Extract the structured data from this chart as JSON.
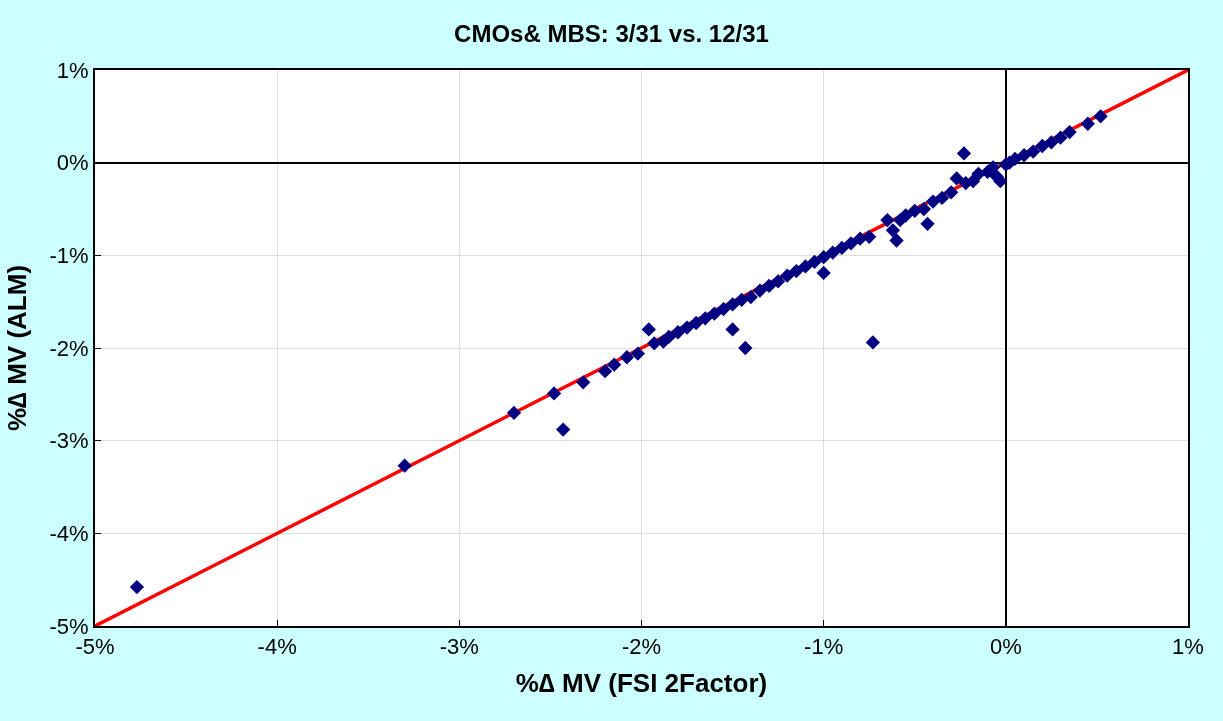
{
  "chart_data": {
    "type": "scatter",
    "title": "CMOs& MBS: 3/31 vs. 12/31",
    "xlabel": "%∆ MV (FSI 2Factor)",
    "ylabel": "%∆ MV (ALM)",
    "xlim": [
      -5,
      1
    ],
    "ylim": [
      -5,
      1
    ],
    "xticks": [
      {
        "value": -5,
        "label": "-5%"
      },
      {
        "value": -4,
        "label": "-4%"
      },
      {
        "value": -3,
        "label": "-3%"
      },
      {
        "value": -2,
        "label": "-2%"
      },
      {
        "value": -1,
        "label": "-1%"
      },
      {
        "value": 0,
        "label": "0%"
      },
      {
        "value": 1,
        "label": "1%"
      }
    ],
    "yticks": [
      {
        "value": -5,
        "label": "-5%"
      },
      {
        "value": -4,
        "label": "-4%"
      },
      {
        "value": -3,
        "label": "-3%"
      },
      {
        "value": -2,
        "label": "-2%"
      },
      {
        "value": -1,
        "label": "-1%"
      },
      {
        "value": 0,
        "label": "0%"
      },
      {
        "value": 1,
        "label": "1%"
      }
    ],
    "grid": true,
    "marker": "diamond",
    "series": [
      {
        "type": "line",
        "color": "#ff0000",
        "x": [
          -5,
          1
        ],
        "values": [
          -5,
          1
        ],
        "marker": "none",
        "line_style": "solid"
      },
      {
        "color": "#000080",
        "x": [
          -4.77,
          -3.3,
          -2.7,
          -2.48,
          -2.43,
          -2.32,
          -2.2,
          -2.15,
          -2.08,
          -2.02,
          -1.96,
          -1.93,
          -1.88,
          -1.85,
          -1.8,
          -1.75,
          -1.7,
          -1.65,
          -1.6,
          -1.55,
          -1.5,
          -1.5,
          -1.45,
          -1.43,
          -1.4,
          -1.35,
          -1.3,
          -1.25,
          -1.2,
          -1.15,
          -1.1,
          -1.05,
          -1.0,
          -1.0,
          -0.95,
          -0.9,
          -0.85,
          -0.8,
          -0.75,
          -0.73,
          -0.65,
          -0.62,
          -0.6,
          -0.58,
          -0.55,
          -0.5,
          -0.45,
          -0.43,
          -0.4,
          -0.35,
          -0.3,
          -0.27,
          -0.23,
          -0.22,
          -0.18,
          -0.15,
          -0.1,
          -0.07,
          -0.05,
          -0.03,
          0.0,
          0.02,
          0.05,
          0.1,
          0.15,
          0.2,
          0.25,
          0.3,
          0.35,
          0.45,
          0.52
        ],
        "values": [
          -4.58,
          -3.27,
          -2.7,
          -2.49,
          -2.88,
          -2.37,
          -2.25,
          -2.18,
          -2.1,
          -2.06,
          -1.8,
          -1.95,
          -1.93,
          -1.88,
          -1.83,
          -1.78,
          -1.73,
          -1.68,
          -1.63,
          -1.58,
          -1.53,
          -1.8,
          -1.48,
          -2.0,
          -1.45,
          -1.38,
          -1.33,
          -1.28,
          -1.22,
          -1.17,
          -1.12,
          -1.07,
          -1.19,
          -1.02,
          -0.97,
          -0.92,
          -0.87,
          -0.82,
          -0.8,
          -1.94,
          -0.62,
          -0.73,
          -0.84,
          -0.62,
          -0.57,
          -0.52,
          -0.5,
          -0.66,
          -0.42,
          -0.38,
          -0.32,
          -0.17,
          0.1,
          -0.22,
          -0.2,
          -0.12,
          -0.1,
          -0.05,
          -0.15,
          -0.2,
          -0.02,
          0.0,
          0.04,
          0.08,
          0.12,
          0.18,
          0.22,
          0.27,
          0.33,
          0.42,
          0.5
        ]
      }
    ]
  }
}
